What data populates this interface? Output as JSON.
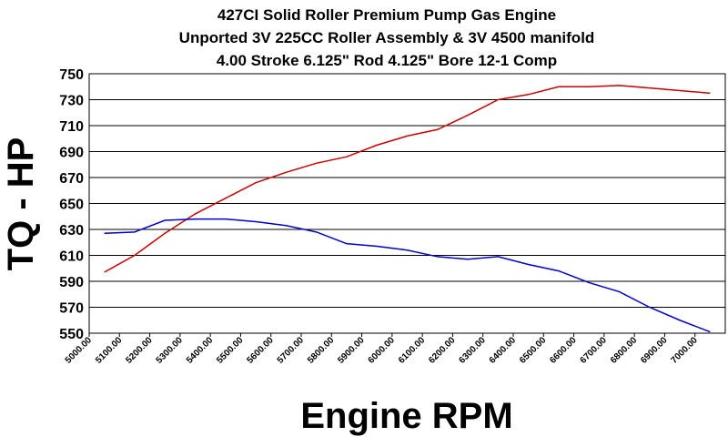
{
  "chart_data": {
    "type": "line",
    "title": [
      "427CI Solid Roller Premium Pump Gas Engine",
      "Unported 3V 225CC Roller Assembly & 3V 4500 manifold",
      "4.00 Stroke 6.125\" Rod 4.125\" Bore 12-1 Comp"
    ],
    "x_label": "Engine RPM",
    "y_label": "TQ - HP",
    "x": [
      5050,
      5150,
      5250,
      5350,
      5450,
      5550,
      5650,
      5750,
      5850,
      5950,
      6050,
      6150,
      6250,
      6350,
      6450,
      6550,
      6650,
      6750,
      6850,
      6950,
      7050
    ],
    "series": [
      {
        "color": "#cc0000",
        "values": [
          597,
          610,
          627,
          642,
          654,
          666,
          674,
          681,
          686,
          695,
          702,
          707,
          718,
          730,
          734,
          740,
          740,
          741,
          739,
          737,
          735
        ]
      },
      {
        "color": "#0000cc",
        "values": [
          627,
          628,
          637,
          638,
          638,
          636,
          633,
          628,
          619,
          617,
          614,
          609,
          607,
          609,
          603,
          598,
          589,
          582,
          570,
          560,
          551
        ]
      }
    ],
    "xlim": [
      5000,
      7100
    ],
    "ylim": [
      550,
      750
    ],
    "xticks": [
      {
        "value": 5000,
        "label": "5000.00"
      },
      {
        "value": 5100,
        "label": "5100.00"
      },
      {
        "value": 5200,
        "label": "5200.00"
      },
      {
        "value": 5300,
        "label": "5300.00"
      },
      {
        "value": 5400,
        "label": "5400.00"
      },
      {
        "value": 5500,
        "label": "5500.00"
      },
      {
        "value": 5600,
        "label": "5600.00"
      },
      {
        "value": 5700,
        "label": "5700.00"
      },
      {
        "value": 5800,
        "label": "5800.00"
      },
      {
        "value": 5900,
        "label": "5900.00"
      },
      {
        "value": 6000,
        "label": "6000.00"
      },
      {
        "value": 6100,
        "label": "6100.00"
      },
      {
        "value": 6200,
        "label": "6200.00"
      },
      {
        "value": 6300,
        "label": "6300.00"
      },
      {
        "value": 6400,
        "label": "6400.00"
      },
      {
        "value": 6500,
        "label": "6500.00"
      },
      {
        "value": 6600,
        "label": "6600.00"
      },
      {
        "value": 6700,
        "label": "6700.00"
      },
      {
        "value": 6800,
        "label": "6800.00"
      },
      {
        "value": 6900,
        "label": "6900.00"
      },
      {
        "value": 7000,
        "label": "7000.00"
      }
    ],
    "yticks": [
      550,
      570,
      590,
      610,
      630,
      650,
      670,
      690,
      710,
      730,
      750
    ],
    "grid": true
  }
}
